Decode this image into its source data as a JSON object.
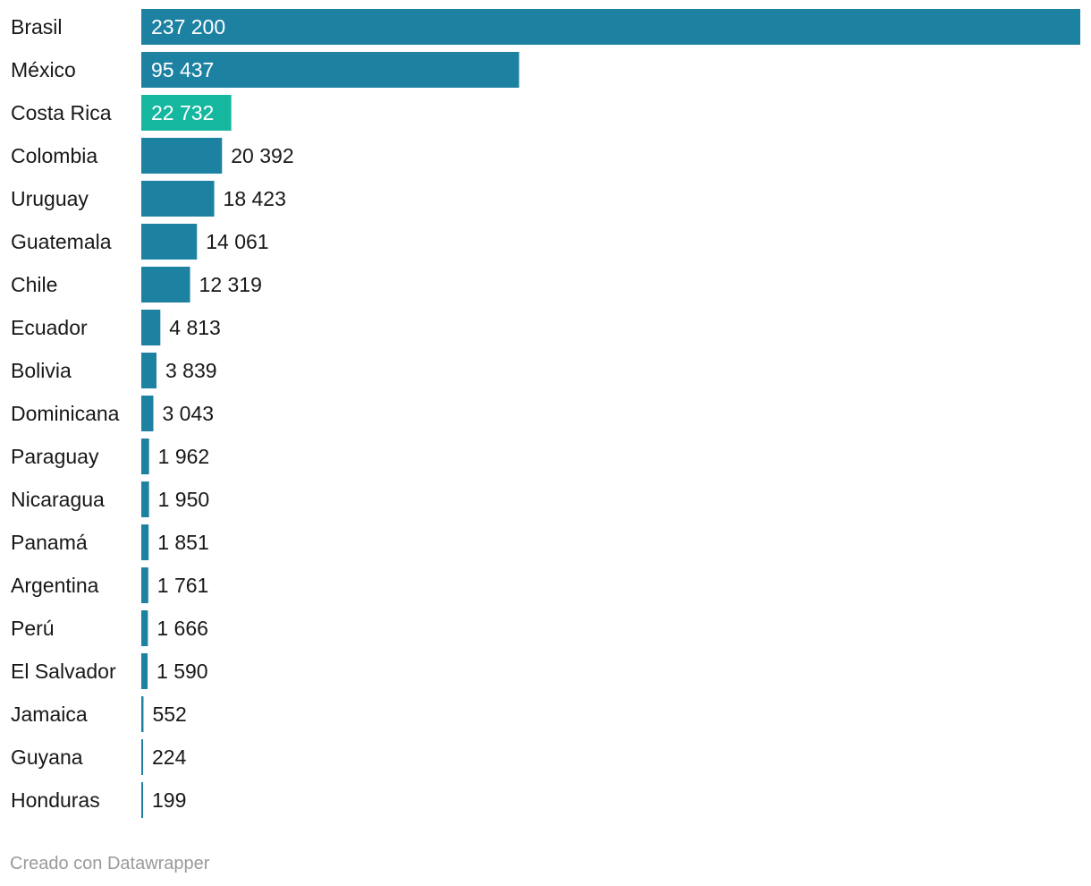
{
  "chart_data": {
    "type": "bar",
    "orientation": "horizontal",
    "categories": [
      "Brasil",
      "México",
      "Costa Rica",
      "Colombia",
      "Uruguay",
      "Guatemala",
      "Chile",
      "Ecuador",
      "Bolivia",
      "Dominicana",
      "Paraguay",
      "Nicaragua",
      "Panamá",
      "Argentina",
      "Perú",
      "El Salvador",
      "Jamaica",
      "Guyana",
      "Honduras"
    ],
    "values": [
      237200,
      95437,
      22732,
      20392,
      18423,
      14061,
      12319,
      4813,
      3839,
      3043,
      1962,
      1950,
      1851,
      1761,
      1666,
      1590,
      552,
      224,
      199
    ],
    "value_labels": [
      "237 200",
      "95 437",
      "22 732",
      "20 392",
      "18 423",
      "14 061",
      "12 319",
      "4 813",
      "3 839",
      "3 043",
      "1 962",
      "1 950",
      "1 851",
      "1 761",
      "1 666",
      "1 590",
      "552",
      "224",
      "199"
    ],
    "highlight": "Costa Rica",
    "title": "",
    "xlabel": "",
    "ylabel": "",
    "xlim": [
      0,
      237200
    ],
    "grid": false,
    "colors": {
      "bar": "#1d81a2",
      "highlight": "#15b79e",
      "label_inside": "#ffffff",
      "label_outside": "#181818"
    }
  },
  "footer": {
    "credit": "Creado con Datawrapper"
  }
}
